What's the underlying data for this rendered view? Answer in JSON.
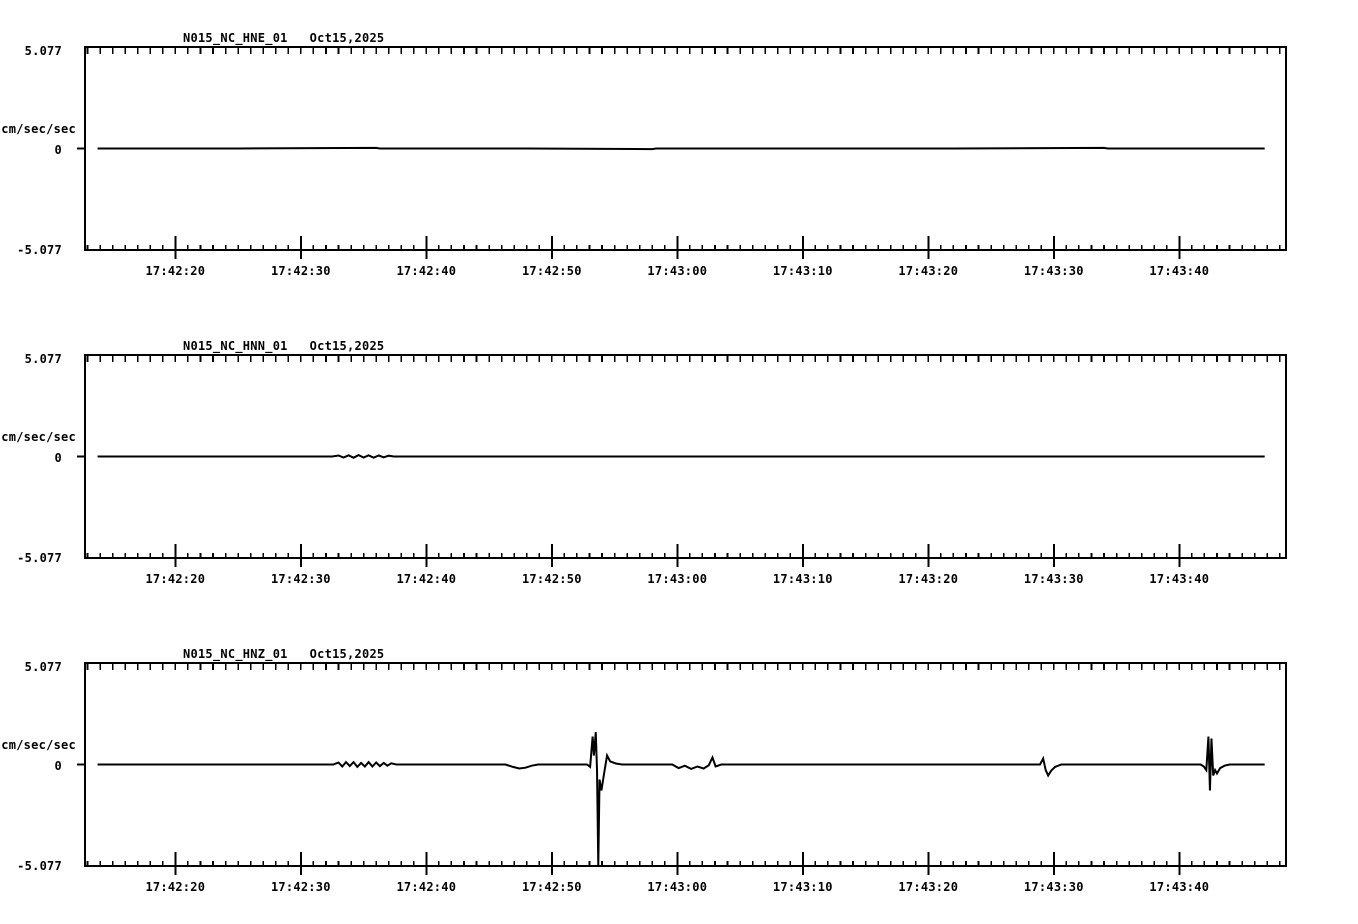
{
  "page": {
    "background": "#ffffff",
    "foreground": "#000000"
  },
  "chart_data": [
    {
      "type": "line",
      "title": "N015_NC_HNE_01",
      "date": "Oct15,2025",
      "ylabel": "cm/sec/sec",
      "y_axis": {
        "limits": [
          -5.077,
          5.077
        ],
        "tick_labels": [
          "5.077",
          "0",
          "-5.077"
        ],
        "tick_values": [
          5.077,
          0,
          -5.077
        ]
      },
      "x_axis": {
        "time_reference": "17:42:00",
        "start_sec": 12.8,
        "end_sec": 108.5,
        "minor_tick_interval_sec": 1,
        "major_ticks": [
          {
            "sec": 20,
            "label": "17:42:20"
          },
          {
            "sec": 30,
            "label": "17:42:30"
          },
          {
            "sec": 40,
            "label": "17:42:40"
          },
          {
            "sec": 50,
            "label": "17:42:50"
          },
          {
            "sec": 60,
            "label": "17:43:00"
          },
          {
            "sec": 70,
            "label": "17:43:10"
          },
          {
            "sec": 80,
            "label": "17:43:20"
          },
          {
            "sec": 90,
            "label": "17:43:30"
          },
          {
            "sec": 100,
            "label": "17:43:40"
          }
        ]
      },
      "series": [
        {
          "name": "N015_NC_HNE_01",
          "units": "cm/sec/sec",
          "points": [
            [
              13.8,
              0
            ],
            [
              25,
              0
            ],
            [
              36,
              0.03
            ],
            [
              36.3,
              0
            ],
            [
              48,
              0
            ],
            [
              58,
              -0.03
            ],
            [
              58.3,
              0
            ],
            [
              70,
              0
            ],
            [
              82,
              0
            ],
            [
              94,
              0.03
            ],
            [
              94.3,
              0
            ],
            [
              106.8,
              0
            ]
          ]
        }
      ]
    },
    {
      "type": "line",
      "title": "N015_NC_HNN_01",
      "date": "Oct15,2025",
      "ylabel": "cm/sec/sec",
      "y_axis": {
        "limits": [
          -5.077,
          5.077
        ],
        "tick_labels": [
          "5.077",
          "0",
          "-5.077"
        ],
        "tick_values": [
          5.077,
          0,
          -5.077
        ]
      },
      "x_axis": {
        "time_reference": "17:42:00",
        "start_sec": 12.8,
        "end_sec": 108.5,
        "minor_tick_interval_sec": 1,
        "major_ticks": [
          {
            "sec": 20,
            "label": "17:42:20"
          },
          {
            "sec": 30,
            "label": "17:42:30"
          },
          {
            "sec": 40,
            "label": "17:42:40"
          },
          {
            "sec": 50,
            "label": "17:42:50"
          },
          {
            "sec": 60,
            "label": "17:43:00"
          },
          {
            "sec": 70,
            "label": "17:43:10"
          },
          {
            "sec": 80,
            "label": "17:43:20"
          },
          {
            "sec": 90,
            "label": "17:43:30"
          },
          {
            "sec": 100,
            "label": "17:43:40"
          }
        ]
      },
      "series": [
        {
          "name": "N015_NC_HNN_01",
          "units": "cm/sec/sec",
          "points": [
            [
              13.8,
              0
            ],
            [
              32.5,
              0
            ],
            [
              33,
              0.05
            ],
            [
              33.4,
              -0.05
            ],
            [
              33.8,
              0.06
            ],
            [
              34.2,
              -0.06
            ],
            [
              34.6,
              0.07
            ],
            [
              35,
              -0.05
            ],
            [
              35.4,
              0.06
            ],
            [
              35.8,
              -0.06
            ],
            [
              36.2,
              0.05
            ],
            [
              36.6,
              -0.04
            ],
            [
              37,
              0.04
            ],
            [
              37.4,
              0
            ],
            [
              60,
              0
            ],
            [
              80,
              0
            ],
            [
              106.8,
              0
            ]
          ]
        }
      ]
    },
    {
      "type": "line",
      "title": "N015_NC_HNZ_01",
      "date": "Oct15,2025",
      "ylabel": "cm/sec/sec",
      "y_axis": {
        "limits": [
          -5.077,
          5.077
        ],
        "tick_labels": [
          "5.077",
          "0",
          "-5.077"
        ],
        "tick_values": [
          5.077,
          0,
          -5.077
        ]
      },
      "x_axis": {
        "time_reference": "17:42:00",
        "start_sec": 12.8,
        "end_sec": 108.5,
        "minor_tick_interval_sec": 1,
        "major_ticks": [
          {
            "sec": 20,
            "label": "17:42:20"
          },
          {
            "sec": 30,
            "label": "17:42:30"
          },
          {
            "sec": 40,
            "label": "17:42:40"
          },
          {
            "sec": 50,
            "label": "17:42:50"
          },
          {
            "sec": 60,
            "label": "17:43:00"
          },
          {
            "sec": 70,
            "label": "17:43:10"
          },
          {
            "sec": 80,
            "label": "17:43:20"
          },
          {
            "sec": 90,
            "label": "17:43:30"
          },
          {
            "sec": 100,
            "label": "17:43:40"
          }
        ]
      },
      "series": [
        {
          "name": "N015_NC_HNZ_01",
          "units": "cm/sec/sec",
          "points": [
            [
              13.8,
              0
            ],
            [
              20,
              0
            ],
            [
              26,
              0
            ],
            [
              32.6,
              0
            ],
            [
              33.0,
              0.1
            ],
            [
              33.3,
              -0.1
            ],
            [
              33.6,
              0.12
            ],
            [
              33.9,
              -0.08
            ],
            [
              34.2,
              0.12
            ],
            [
              34.5,
              -0.12
            ],
            [
              34.8,
              0.08
            ],
            [
              35.1,
              -0.1
            ],
            [
              35.4,
              0.12
            ],
            [
              35.7,
              -0.1
            ],
            [
              36.0,
              0.1
            ],
            [
              36.3,
              -0.08
            ],
            [
              36.6,
              0.08
            ],
            [
              36.9,
              -0.06
            ],
            [
              37.2,
              0.06
            ],
            [
              37.6,
              0
            ],
            [
              42,
              0
            ],
            [
              46.3,
              0
            ],
            [
              46.9,
              -0.12
            ],
            [
              47.4,
              -0.2
            ],
            [
              47.9,
              -0.16
            ],
            [
              48.4,
              -0.06
            ],
            [
              48.9,
              0
            ],
            [
              52.8,
              0
            ],
            [
              53.05,
              -0.12
            ],
            [
              53.25,
              1.4
            ],
            [
              53.35,
              0.45
            ],
            [
              53.5,
              1.62
            ],
            [
              53.6,
              -0.3
            ],
            [
              53.7,
              -5.077
            ],
            [
              53.8,
              -0.75
            ],
            [
              53.95,
              -1.3
            ],
            [
              54.15,
              -0.5
            ],
            [
              54.4,
              0.45
            ],
            [
              54.65,
              0.15
            ],
            [
              55.1,
              0.05
            ],
            [
              55.6,
              0
            ],
            [
              59.6,
              0
            ],
            [
              60.1,
              -0.18
            ],
            [
              60.6,
              -0.06
            ],
            [
              61.1,
              -0.22
            ],
            [
              61.6,
              -0.1
            ],
            [
              62.1,
              -0.2
            ],
            [
              62.5,
              -0.04
            ],
            [
              62.8,
              0.35
            ],
            [
              63.05,
              -0.1
            ],
            [
              63.5,
              0
            ],
            [
              70,
              0
            ],
            [
              80,
              0
            ],
            [
              88.9,
              0
            ],
            [
              89.15,
              0.3
            ],
            [
              89.35,
              -0.28
            ],
            [
              89.55,
              -0.55
            ],
            [
              89.8,
              -0.3
            ],
            [
              90.1,
              -0.12
            ],
            [
              90.6,
              0
            ],
            [
              96,
              0
            ],
            [
              101.7,
              0
            ],
            [
              101.95,
              -0.1
            ],
            [
              102.15,
              -0.28
            ],
            [
              102.32,
              1.4
            ],
            [
              102.44,
              -1.3
            ],
            [
              102.56,
              1.3
            ],
            [
              102.7,
              -0.55
            ],
            [
              102.85,
              -0.28
            ],
            [
              103.0,
              -0.45
            ],
            [
              103.25,
              -0.18
            ],
            [
              103.6,
              -0.06
            ],
            [
              104.0,
              0
            ],
            [
              106.8,
              0
            ]
          ]
        }
      ]
    }
  ]
}
